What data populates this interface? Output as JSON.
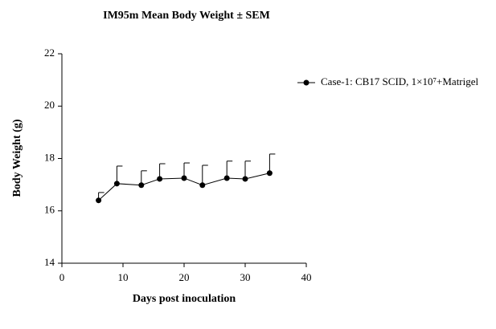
{
  "chart_data": {
    "type": "line",
    "title": "IM95m Mean Body Weight ± SEM",
    "xlabel": "Days post inoculation",
    "ylabel": "Body Weight (g)",
    "x": [
      6,
      9,
      13,
      16,
      20,
      23,
      27,
      30,
      34
    ],
    "series": [
      {
        "name": "Case-1: CB17 SCID, 1×10⁷+Matrigel",
        "color": "#000000",
        "values": [
          16.4,
          17.04,
          16.98,
          17.22,
          17.25,
          16.98,
          17.25,
          17.22,
          17.44
        ],
        "errors": [
          0.3,
          0.67,
          0.55,
          0.58,
          0.58,
          0.76,
          0.65,
          0.68,
          0.73
        ]
      }
    ],
    "xlim": [
      0,
      40
    ],
    "xticks": [
      0,
      10,
      20,
      30,
      40
    ],
    "ylim": [
      14,
      22
    ],
    "yticks": [
      14,
      16,
      18,
      20,
      22
    ],
    "legend": "right"
  }
}
